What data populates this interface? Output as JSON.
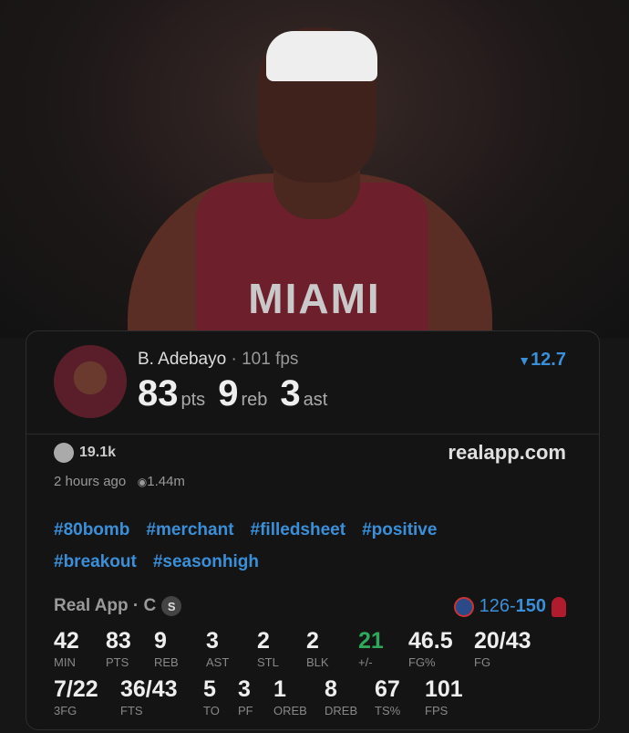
{
  "photo": {
    "jersey_text": "MIAMI"
  },
  "player": {
    "name": "B. Adebayo",
    "fps_label": "· 101 fps",
    "pts": "83",
    "pts_unit": "pts",
    "reb": "9",
    "reb_unit": "reb",
    "ast": "3",
    "ast_unit": "ast",
    "projection": "12.7",
    "projection_icon": "down-triangle-icon"
  },
  "social": {
    "likes": "19.1k",
    "site": "realapp.com",
    "time": "2 hours ago",
    "views": "1.44m"
  },
  "tags": [
    "#80bomb",
    "#merchant",
    "#filledsheet",
    "#positive",
    "#breakout",
    "#seasonhigh"
  ],
  "game": {
    "source": "Real App · C",
    "badge": "S",
    "away_score": "126",
    "sep": "-",
    "home_score": "150"
  },
  "colors": {
    "accent": "#3b8fd9",
    "positive": "#2ea85a"
  },
  "stats_row1": [
    {
      "v": "42",
      "l": "MIN"
    },
    {
      "v": "83",
      "l": "PTS"
    },
    {
      "v": "9",
      "l": "REB"
    },
    {
      "v": "3",
      "l": "AST"
    },
    {
      "v": "2",
      "l": "STL"
    },
    {
      "v": "2",
      "l": "BLK"
    },
    {
      "v": "21",
      "l": "+/-"
    },
    {
      "v": "46.5",
      "l": "FG%"
    },
    {
      "v": "20/43",
      "l": "FG"
    }
  ],
  "stats_row2": [
    {
      "v": "7/22",
      "l": "3FG"
    },
    {
      "v": "36/43",
      "l": "FTS"
    },
    {
      "v": "5",
      "l": "TO"
    },
    {
      "v": "3",
      "l": "PF"
    },
    {
      "v": "1",
      "l": "OREB"
    },
    {
      "v": "8",
      "l": "DREB"
    },
    {
      "v": "67",
      "l": "TS%"
    },
    {
      "v": "101",
      "l": "FPS"
    }
  ]
}
